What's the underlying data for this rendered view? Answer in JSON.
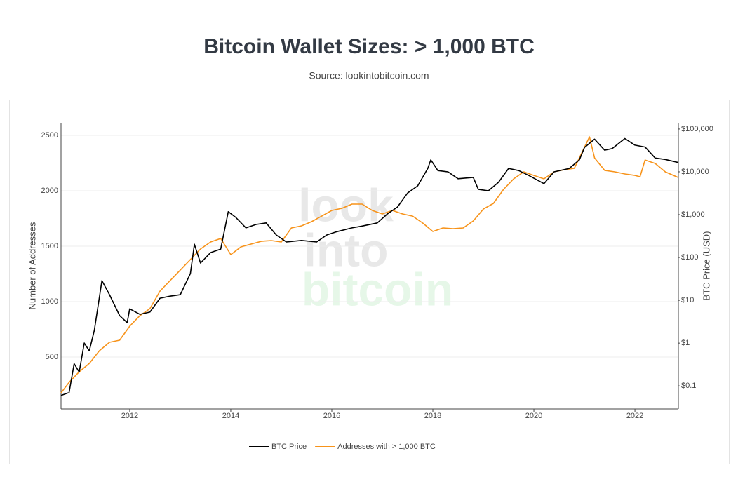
{
  "chart_data": {
    "type": "line",
    "title": "Bitcoin Wallet Sizes: > 1,000 BTC",
    "subtitle": "Source: lookintobitcoin.com",
    "watermark": [
      "look",
      "into",
      "bitcoin"
    ],
    "y_label": "Number of Addresses",
    "y2_label": "BTC Price (USD)",
    "xlim": [
      2010.64,
      2022.86
    ],
    "xticks": [
      2012,
      2014,
      2016,
      2018,
      2020,
      2022
    ],
    "ylim": [
      32,
      2614
    ],
    "yticks": [
      500,
      1000,
      1500,
      2000,
      2500
    ],
    "y2lim": [
      0.029,
      140000
    ],
    "y2_log": true,
    "y2ticks": [
      {
        "value": 0.1,
        "label": "$0.1"
      },
      {
        "value": 1,
        "label": "$1"
      },
      {
        "value": 10,
        "label": "$10"
      },
      {
        "value": 100,
        "label": "$100"
      },
      {
        "value": 1000,
        "label": "$1,000"
      },
      {
        "value": 10000,
        "label": "$10,000"
      },
      {
        "value": 100000,
        "label": "$100,000"
      }
    ],
    "grid": true,
    "legend": "bottom",
    "series": [
      {
        "name": "BTC Price",
        "color": "#000000",
        "axis": "y2",
        "x": [
          2010.64,
          2010.8,
          2010.9,
          2011.0,
          2011.1,
          2011.2,
          2011.3,
          2011.45,
          2011.6,
          2011.8,
          2011.95,
          2012.0,
          2012.2,
          2012.4,
          2012.6,
          2012.8,
          2013.0,
          2013.2,
          2013.28,
          2013.4,
          2013.6,
          2013.8,
          2013.95,
          2014.1,
          2014.3,
          2014.5,
          2014.7,
          2014.9,
          2015.1,
          2015.4,
          2015.7,
          2015.9,
          2016.1,
          2016.4,
          2016.6,
          2016.9,
          2017.1,
          2017.3,
          2017.5,
          2017.7,
          2017.9,
          2017.96,
          2018.1,
          2018.3,
          2018.5,
          2018.8,
          2018.9,
          2019.1,
          2019.3,
          2019.5,
          2019.7,
          2019.9,
          2020.2,
          2020.4,
          2020.7,
          2020.9,
          2021.0,
          2021.2,
          2021.4,
          2021.55,
          2021.8,
          2022.0,
          2022.2,
          2022.4,
          2022.6,
          2022.86
        ],
        "values": [
          0.06,
          0.07,
          0.33,
          0.21,
          1.0,
          0.66,
          2.0,
          28.7,
          13.5,
          4.4,
          3.0,
          6.3,
          4.7,
          5.3,
          11.2,
          12.5,
          13.5,
          42,
          204,
          74,
          130,
          157,
          1170,
          860,
          490,
          590,
          640,
          335,
          230,
          250,
          230,
          335,
          400,
          490,
          540,
          640,
          1040,
          1510,
          3200,
          4700,
          12000,
          19000,
          10700,
          10000,
          6900,
          7400,
          3900,
          3600,
          5700,
          12000,
          10700,
          8200,
          5300,
          10000,
          12000,
          19000,
          37000,
          58000,
          32000,
          35000,
          60000,
          42000,
          38000,
          21000,
          19500,
          16500
        ]
      },
      {
        "name": "Addresses with > 1,000 BTC",
        "color": "#f7931a",
        "axis": "y",
        "x": [
          2010.64,
          2010.8,
          2011.0,
          2011.2,
          2011.4,
          2011.6,
          2011.8,
          2012.0,
          2012.2,
          2012.4,
          2012.6,
          2012.8,
          2013.0,
          2013.2,
          2013.4,
          2013.6,
          2013.8,
          2014.0,
          2014.2,
          2014.4,
          2014.6,
          2014.8,
          2015.0,
          2015.2,
          2015.4,
          2015.6,
          2015.8,
          2016.0,
          2016.2,
          2016.4,
          2016.6,
          2016.8,
          2017.0,
          2017.2,
          2017.4,
          2017.6,
          2017.8,
          2018.0,
          2018.2,
          2018.4,
          2018.6,
          2018.8,
          2019.0,
          2019.2,
          2019.4,
          2019.6,
          2019.8,
          2020.0,
          2020.2,
          2020.4,
          2020.6,
          2020.8,
          2021.0,
          2021.1,
          2021.2,
          2021.4,
          2021.6,
          2021.8,
          2022.0,
          2022.1,
          2022.2,
          2022.4,
          2022.6,
          2022.86
        ],
        "values": [
          177,
          272,
          367,
          443,
          557,
          633,
          652,
          778,
          873,
          937,
          1095,
          1190,
          1285,
          1380,
          1475,
          1538,
          1570,
          1424,
          1494,
          1519,
          1544,
          1551,
          1538,
          1665,
          1684,
          1722,
          1772,
          1823,
          1842,
          1880,
          1880,
          1823,
          1791,
          1823,
          1791,
          1772,
          1709,
          1633,
          1665,
          1658,
          1665,
          1728,
          1835,
          1886,
          2013,
          2108,
          2171,
          2139,
          2108,
          2171,
          2190,
          2203,
          2392,
          2487,
          2297,
          2184,
          2171,
          2152,
          2139,
          2127,
          2278,
          2247,
          2171,
          2120
        ]
      }
    ]
  }
}
